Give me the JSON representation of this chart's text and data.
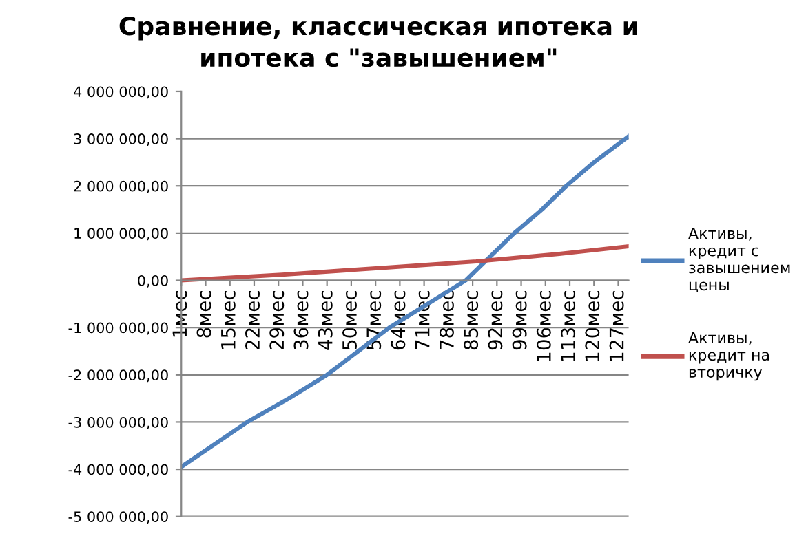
{
  "chart_data": {
    "type": "line",
    "title": "Сравнение, классическая ипотека и ипотека с \"завышением\"",
    "xlim": [
      1,
      130
    ],
    "xticks": [
      {
        "value": 1,
        "label": "1мес"
      },
      {
        "value": 8,
        "label": "8мес"
      },
      {
        "value": 15,
        "label": "15мес"
      },
      {
        "value": 22,
        "label": "22мес"
      },
      {
        "value": 29,
        "label": "29мес"
      },
      {
        "value": 36,
        "label": "36мес"
      },
      {
        "value": 43,
        "label": "43мес"
      },
      {
        "value": 50,
        "label": "50мес"
      },
      {
        "value": 57,
        "label": "57мес"
      },
      {
        "value": 64,
        "label": "64мес"
      },
      {
        "value": 71,
        "label": "71мес"
      },
      {
        "value": 78,
        "label": "78мес"
      },
      {
        "value": 85,
        "label": "85мес"
      },
      {
        "value": 92,
        "label": "92мес"
      },
      {
        "value": 99,
        "label": "99мес"
      },
      {
        "value": 106,
        "label": "106мес"
      },
      {
        "value": 113,
        "label": "113мес"
      },
      {
        "value": 120,
        "label": "120мес"
      },
      {
        "value": 127,
        "label": "127мес"
      }
    ],
    "ylim": [
      -5000000,
      4000000
    ],
    "yticks": [
      {
        "value": -5000000,
        "label": "-5 000 000,00"
      },
      {
        "value": -4000000,
        "label": "-4 000 000,00"
      },
      {
        "value": -3000000,
        "label": "-3 000 000,00"
      },
      {
        "value": -2000000,
        "label": "-2 000 000,00"
      },
      {
        "value": -1000000,
        "label": "-1 000 000,00"
      },
      {
        "value": 0,
        "label": "0,00"
      },
      {
        "value": 1000000,
        "label": "1 000 000,00"
      },
      {
        "value": 2000000,
        "label": "2 000 000,00"
      },
      {
        "value": 3000000,
        "label": "3 000 000,00"
      },
      {
        "value": 4000000,
        "label": "4 000 000,00"
      }
    ],
    "grid": "y",
    "legend": "right",
    "marker": "none",
    "line_style": "solid",
    "series": [
      {
        "name": "Активы, кредит с завышением цены",
        "color": "#4f81bd",
        "x": [
          1,
          10,
          20,
          32,
          43,
          52,
          61,
          72,
          83,
          90,
          97,
          105,
          112,
          120,
          130
        ],
        "values": [
          -3950000,
          -3500000,
          -3000000,
          -2500000,
          -2000000,
          -1500000,
          -1000000,
          -500000,
          0,
          500000,
          1000000,
          1500000,
          2000000,
          2500000,
          3050000
        ]
      },
      {
        "name": "Активы, кредит на вторичку",
        "color": "#c0504d",
        "x": [
          1,
          30,
          60,
          86,
          110,
          130
        ],
        "values": [
          0,
          120000,
          270000,
          400000,
          560000,
          720000
        ]
      }
    ]
  }
}
